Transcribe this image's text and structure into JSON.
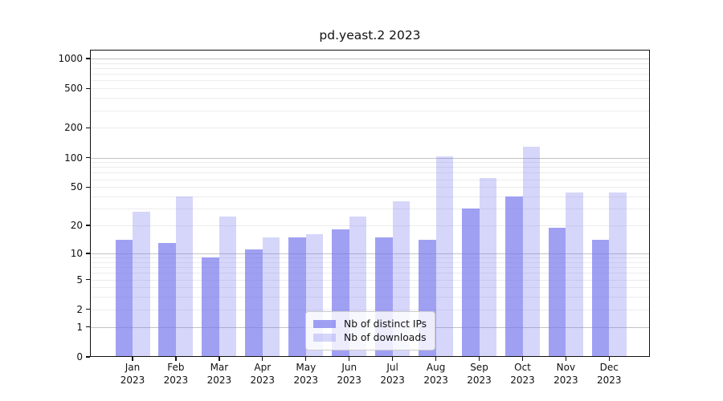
{
  "title": "pd.yeast.2 2023",
  "chart_data": {
    "type": "bar",
    "categories": [
      "Jan",
      "Feb",
      "Mar",
      "Apr",
      "May",
      "Jun",
      "Jul",
      "Aug",
      "Sep",
      "Oct",
      "Nov",
      "Dec"
    ],
    "year": "2023",
    "series": [
      {
        "name": "Nb of distinct IPs",
        "color": "rgba(119,119,238,0.7)",
        "values": [
          14,
          13,
          9,
          11,
          15,
          18,
          15,
          14,
          30,
          40,
          19,
          14
        ]
      },
      {
        "name": "Nb of downloads",
        "color": "rgba(119,119,238,0.3)",
        "values": [
          28,
          40,
          25,
          15,
          16,
          25,
          36,
          103,
          62,
          130,
          44,
          44
        ]
      }
    ],
    "y_axis": {
      "scale": "log1p",
      "tick_values": [
        0,
        1,
        2,
        5,
        10,
        20,
        50,
        100,
        200,
        500,
        1000
      ],
      "major_gridline_values": [
        1,
        10,
        100,
        1000
      ],
      "range": [
        0,
        1100
      ]
    },
    "xlabel": "",
    "ylabel": "",
    "grid": true,
    "legend_position": "lower center"
  },
  "colors": {
    "bar_base": "#7777ee",
    "grid_major": "#c3c3c3",
    "grid_minor": "#ececec",
    "spine": "#111111",
    "background": "#ffffff"
  }
}
